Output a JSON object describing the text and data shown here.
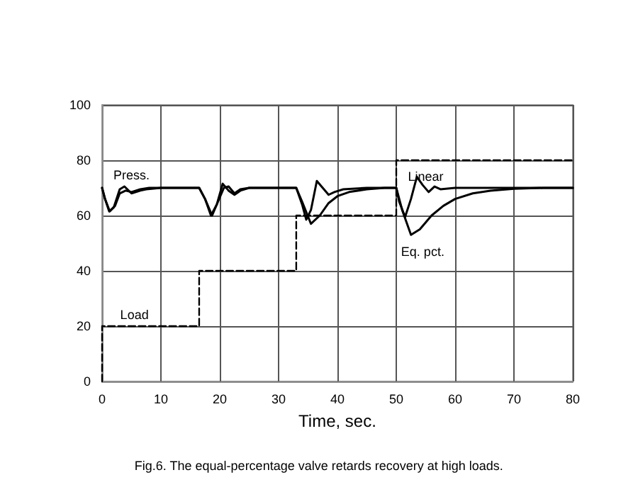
{
  "chart_data": {
    "type": "line",
    "xlabel": "Time, sec.",
    "xlim": [
      0,
      80
    ],
    "xticks": [
      0,
      10,
      20,
      30,
      40,
      50,
      60,
      70,
      80
    ],
    "ylim": [
      0,
      100
    ],
    "yticks": [
      0,
      20,
      40,
      60,
      80,
      100
    ],
    "grid": true,
    "marker": "none",
    "series": [
      {
        "color": "#000000",
        "line_style": "solid",
        "x": [
          0,
          0.5,
          1.2,
          2,
          3,
          3.8,
          5,
          6.5,
          7.5,
          10,
          16.5,
          17.5,
          18.5,
          19.5,
          20.5,
          21.5,
          22.5,
          23.5,
          25,
          33,
          34,
          34.7,
          35.5,
          36.5,
          37.5,
          38.5,
          39.5,
          41,
          45,
          50,
          50.5,
          51.5,
          52.5,
          53.5,
          54.5,
          55.5,
          56.5,
          57.5,
          60,
          80
        ],
        "values": [
          70,
          66,
          61.5,
          63,
          69.5,
          70.5,
          68,
          69,
          69.5,
          70,
          70,
          66,
          60,
          64,
          71.5,
          69,
          67.5,
          69,
          70,
          70,
          64,
          58.5,
          62,
          72.5,
          70,
          67.5,
          68.5,
          69.5,
          70,
          70,
          65,
          59.5,
          66,
          74,
          71,
          68.5,
          70.5,
          69.5,
          70,
          70
        ]
      },
      {
        "color": "#000000",
        "line_style": "solid",
        "x": [
          0,
          0.5,
          1.3,
          2.2,
          3,
          4,
          5,
          6.5,
          8,
          16.5,
          17.5,
          18.7,
          19.7,
          20.7,
          21.5,
          22.5,
          23.5,
          25,
          33,
          34,
          35.5,
          37,
          38.5,
          40,
          42,
          45,
          48,
          50,
          51,
          52.5,
          54,
          56,
          58,
          60,
          63,
          66,
          70,
          75,
          80
        ],
        "values": [
          70,
          66,
          61.5,
          63.5,
          68,
          69,
          68.5,
          69.5,
          70,
          70,
          66,
          60,
          65,
          70,
          70.5,
          68,
          69.5,
          70,
          70,
          65,
          57,
          60,
          64.5,
          67,
          68.5,
          69.5,
          70,
          70,
          62,
          53,
          55,
          60,
          63.5,
          66,
          68,
          69,
          69.7,
          70,
          70
        ]
      },
      {
        "type": "step",
        "color": "#000000",
        "line_style": "dashed",
        "x": [
          0,
          0,
          16.5,
          33,
          50,
          80
        ],
        "values": [
          0,
          20,
          40,
          60,
          80,
          80
        ]
      }
    ],
    "annotations": [
      "Press.",
      "Linear",
      "Eq. pct.",
      "Load",
      "Fig.6. The equal-percentage valve retards recovery at high loads."
    ]
  }
}
